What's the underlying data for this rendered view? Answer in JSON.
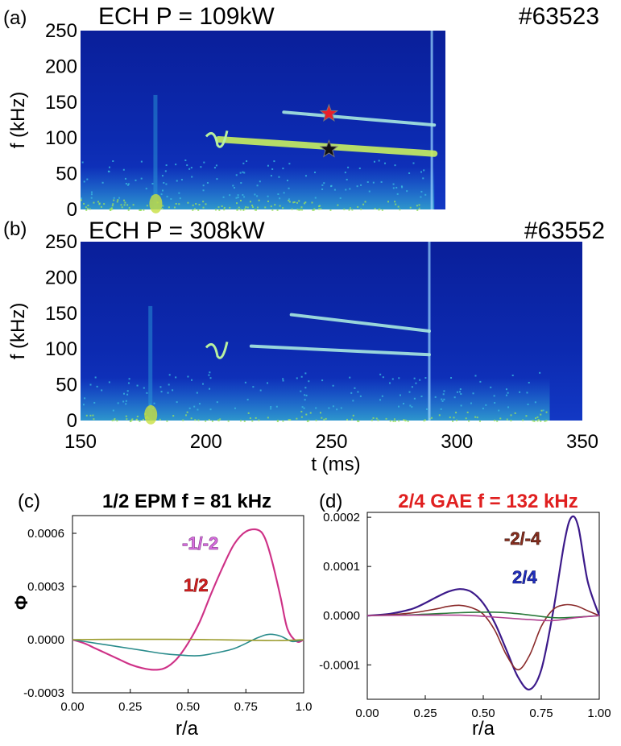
{
  "chart_data": [
    {
      "type": "heatmap",
      "panel_label": "(a)",
      "title": "ECH P = 109kW",
      "shot": "#63523",
      "ylabel": "f (kHz)",
      "ylim": [
        0,
        250
      ],
      "yticks": [
        "0",
        "50",
        "100",
        "150",
        "200",
        "250"
      ],
      "xlim": [
        150,
        350
      ],
      "data_xlim": [
        150,
        291
      ],
      "modes": [
        {
          "t": [
            231,
            291
          ],
          "f": [
            136,
            118
          ]
        },
        {
          "t": [
            205,
            291
          ],
          "f": [
            98,
            78
          ]
        }
      ],
      "markers": [
        {
          "t": 249,
          "f": 134,
          "color": "#e8202a",
          "symbol": "star"
        },
        {
          "t": 249,
          "f": 84,
          "color": "#111111",
          "symbol": "star"
        }
      ]
    },
    {
      "type": "heatmap",
      "panel_label": "(b)",
      "title": "ECH P = 308kW",
      "shot": "#63552",
      "ylabel": "f (kHz)",
      "ylim": [
        0,
        250
      ],
      "yticks": [
        "0",
        "50",
        "100",
        "150",
        "200",
        "250"
      ],
      "xlim": [
        150,
        350
      ],
      "data_xlim": [
        150,
        337
      ],
      "xlabel": "t (ms)",
      "xticks": [
        "150",
        "200",
        "250",
        "300",
        "350"
      ],
      "modes": [
        {
          "t": [
            234,
            289
          ],
          "f": [
            148,
            125
          ]
        },
        {
          "t": [
            218,
            289
          ],
          "f": [
            104,
            92
          ]
        }
      ]
    },
    {
      "type": "line",
      "panel_label": "(c)",
      "title": "1/2 EPM f = 81 kHz",
      "ylabel": "Φ",
      "xlabel": "r/a",
      "xlim": [
        0,
        1
      ],
      "ylim": [
        -0.0003,
        0.0007
      ],
      "xticks": [
        "0.00",
        "0.25",
        "0.50",
        "0.75",
        "1.0"
      ],
      "yticks": [
        "-0.0003",
        "0.0000",
        "0.0003",
        "0.0006"
      ],
      "annotations": [
        {
          "text": "-1/-2",
          "color": "#d96fe0"
        },
        {
          "text": "1/2",
          "color": "#d42020"
        }
      ],
      "series": [
        {
          "color": "#e43aae",
          "x": [
            0,
            0.05,
            0.1,
            0.15,
            0.2,
            0.25,
            0.3,
            0.35,
            0.4,
            0.45,
            0.5,
            0.55,
            0.6,
            0.65,
            0.7,
            0.75,
            0.8,
            0.83,
            0.86,
            0.9,
            0.93,
            0.97,
            1.0
          ],
          "y": [
            0,
            -2e-05,
            -5e-05,
            -8e-05,
            -0.00011,
            -0.00014,
            -0.00016,
            -0.00017,
            -0.00016,
            -0.00011,
            -2e-05,
            0.0001,
            0.00026,
            0.00041,
            0.00054,
            0.00061,
            0.00062,
            0.00058,
            0.00046,
            0.00024,
            6e-05,
            -1e-05,
            0
          ]
        },
        {
          "color": "#b03050",
          "x": [
            0,
            0.05,
            0.1,
            0.15,
            0.2,
            0.25,
            0.3,
            0.35,
            0.4,
            0.45,
            0.5,
            0.55,
            0.6,
            0.65,
            0.7,
            0.75,
            0.8,
            0.83,
            0.86,
            0.9,
            0.93,
            0.97,
            1.0
          ],
          "y": [
            0,
            -2e-05,
            -5e-05,
            -8e-05,
            -0.00011,
            -0.00014,
            -0.00016,
            -0.00017,
            -0.00016,
            -0.00011,
            -2e-05,
            0.0001,
            0.00026,
            0.00041,
            0.00054,
            0.00061,
            0.00062,
            0.00058,
            0.00046,
            0.00024,
            6e-05,
            -1e-05,
            0
          ]
        },
        {
          "color": "#2a8c8c",
          "x": [
            0,
            0.1,
            0.2,
            0.3,
            0.4,
            0.5,
            0.55,
            0.6,
            0.7,
            0.8,
            0.85,
            0.9,
            0.95,
            1.0
          ],
          "y": [
            0,
            -2e-05,
            -4e-05,
            -6e-05,
            -8e-05,
            -9e-05,
            -9e-05,
            -8e-05,
            -5e-05,
            1e-05,
            3e-05,
            2e-05,
            -1e-05,
            0
          ]
        },
        {
          "color": "#9a9a2a",
          "x": [
            0,
            0.2,
            0.4,
            0.6,
            0.8,
            0.9,
            1.0
          ],
          "y": [
            0,
            2e-06,
            2e-06,
            0,
            -4e-06,
            -5e-06,
            0
          ]
        }
      ]
    },
    {
      "type": "line",
      "panel_label": "(d)",
      "title": "2/4 GAE f = 132 kHz",
      "xlabel": "r/a",
      "xlim": [
        0,
        1
      ],
      "ylim": [
        -0.00017,
        0.00021
      ],
      "xticks": [
        "0.00",
        "0.25",
        "0.50",
        "0.75",
        "1.00"
      ],
      "yticks": [
        "-0.0001",
        "0.0000",
        "0.0001",
        "0.0002"
      ],
      "annotations": [
        {
          "text": "-2/-4",
          "color": "#8a3020"
        },
        {
          "text": "2/4",
          "color": "#2030c0"
        }
      ],
      "series": [
        {
          "color": "#3c1a8a",
          "x": [
            0,
            0.1,
            0.2,
            0.3,
            0.35,
            0.4,
            0.45,
            0.5,
            0.55,
            0.6,
            0.65,
            0.7,
            0.75,
            0.8,
            0.85,
            0.88,
            0.91,
            0.95,
            1.0
          ],
          "y": [
            0,
            4e-06,
            1.5e-05,
            3.8e-05,
            4.9e-05,
            5.4e-05,
            4.8e-05,
            2.5e-05,
            -1.5e-05,
            -7e-05,
            -0.000125,
            -0.00015,
            -0.00011,
            5e-06,
            0.00015,
            0.0002,
            0.00018,
            7e-05,
            0
          ]
        },
        {
          "color": "#8a2a2a",
          "x": [
            0,
            0.1,
            0.2,
            0.3,
            0.35,
            0.4,
            0.45,
            0.5,
            0.55,
            0.6,
            0.65,
            0.7,
            0.75,
            0.8,
            0.85,
            0.9,
            0.95,
            1.0
          ],
          "y": [
            0,
            2e-06,
            6e-06,
            1.4e-05,
            1.9e-05,
            2.1e-05,
            1.6e-05,
            3e-06,
            -3e-05,
            -8e-05,
            -0.00011,
            -8e-05,
            -2.2e-05,
            1.2e-05,
            2.2e-05,
            2e-05,
            1e-05,
            0
          ]
        },
        {
          "color": "#2a7a3a",
          "x": [
            0,
            0.2,
            0.4,
            0.55,
            0.65,
            0.8,
            0.9,
            1.0
          ],
          "y": [
            0,
            2e-06,
            6e-06,
            7e-06,
            4e-06,
            -4e-06,
            -3e-06,
            0
          ]
        },
        {
          "color": "#b04090",
          "x": [
            0,
            0.2,
            0.4,
            0.55,
            0.7,
            0.8,
            0.9,
            1.0
          ],
          "y": [
            0,
            1e-06,
            1e-06,
            -3e-06,
            -8e-06,
            -1e-05,
            -4e-06,
            0
          ]
        }
      ]
    }
  ]
}
